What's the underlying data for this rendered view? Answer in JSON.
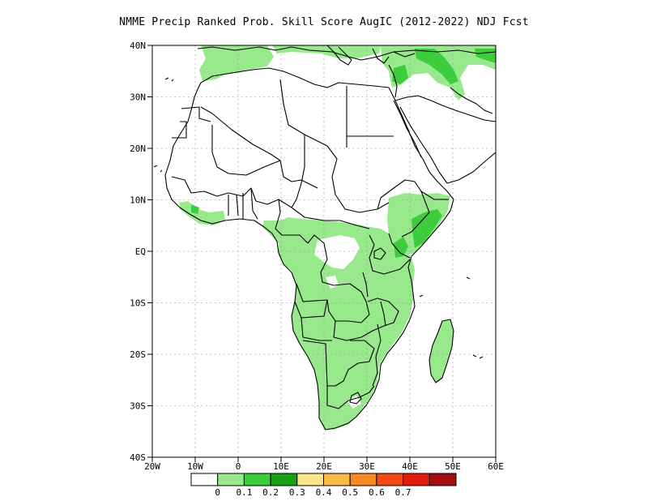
{
  "title": "NMME Precip Ranked Prob. Skill Score AugIC (2012-2022) NDJ Fcst",
  "map": {
    "lon_range": [
      -20,
      60
    ],
    "lat_range": [
      -40,
      40
    ],
    "lat_ticks": [
      "40N",
      "30N",
      "20N",
      "10N",
      "EQ",
      "10S",
      "20S",
      "30S",
      "40S"
    ],
    "lon_ticks": [
      "20W",
      "10W",
      "0",
      "10E",
      "20E",
      "30E",
      "40E",
      "50E",
      "60E"
    ],
    "grid": "dotted"
  },
  "colorbar": {
    "colors": [
      "#ffffff",
      "#98e88c",
      "#3ccc3c",
      "#16a016",
      "#f8e78a",
      "#f8bb48",
      "#f88a20",
      "#f24814",
      "#e41c10",
      "#a40e10"
    ],
    "labels": [
      "0",
      "0.1",
      "0.2",
      "0.3",
      "0.4",
      "0.5",
      "0.6",
      "0.7"
    ]
  },
  "legend_colors": {
    "land_outline": "#000000",
    "skill_0_0_1": "#98e88c",
    "skill_0_1_0_2": "#3ccc3c"
  }
}
